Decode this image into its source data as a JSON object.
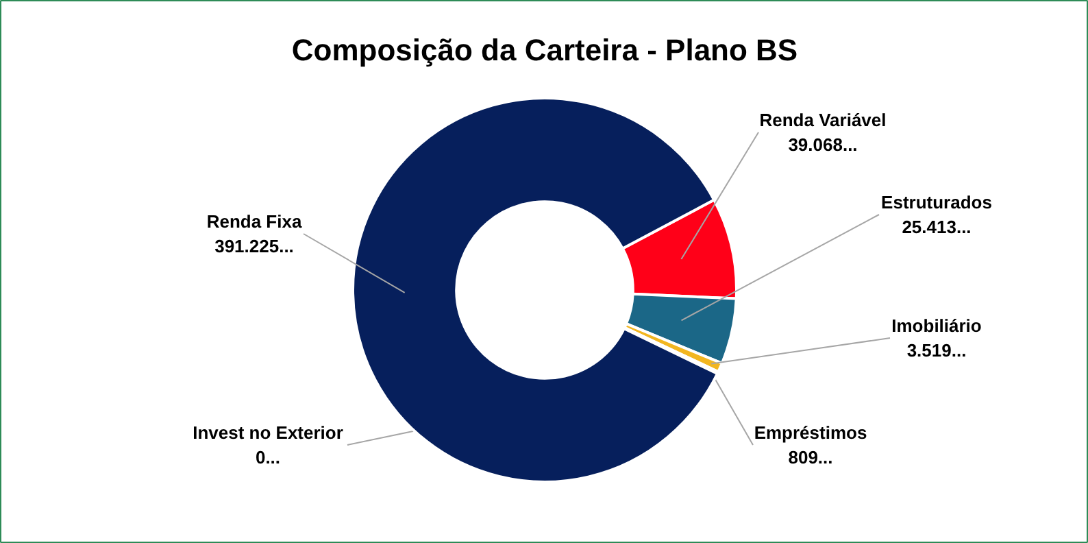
{
  "chart_data": {
    "type": "donut",
    "title": "Composição da Carteira - Plano BS",
    "categories": [
      "Renda Variável",
      "Estruturados",
      "Imobiliário",
      "Empréstimos",
      "Invest no Exterior",
      "Renda Fixa"
    ],
    "values": [
      39068,
      25413,
      3519,
      809,
      0,
      391225
    ],
    "value_labels": [
      "39.068...",
      "25.413...",
      "3.519...",
      "809...",
      "0...",
      "391.225..."
    ],
    "colors": [
      "#ff0018",
      "#1b6787",
      "#f2b620",
      "#a5a5a5",
      "#5b9bd5",
      "#061f5c"
    ]
  }
}
